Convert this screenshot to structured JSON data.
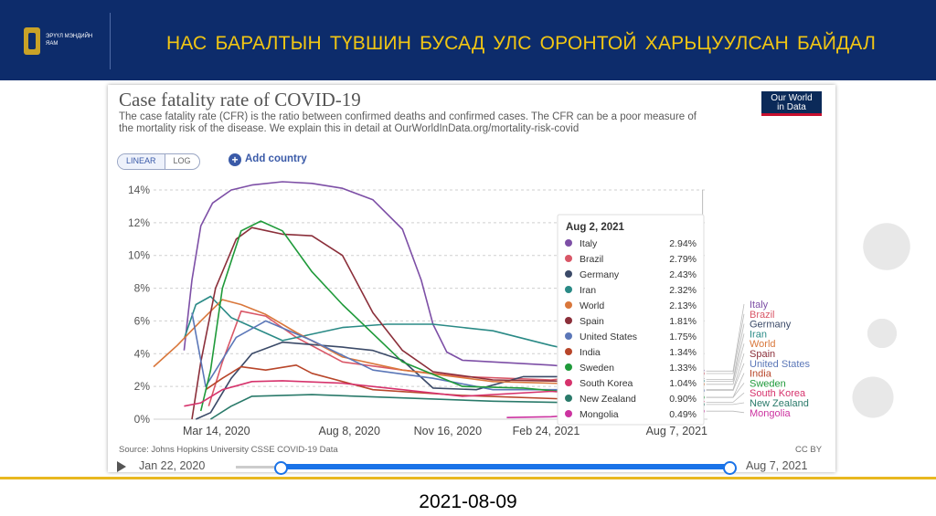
{
  "header": {
    "logo_text": "ЭРҮҮЛ МЭНДИЙН ЯАМ",
    "title": "НАС БАРАЛТЫН ТҮВШИН БУСАД УЛС ОРОНТОЙ ХАРЬЦУУЛСАН БАЙДАЛ"
  },
  "chart": {
    "title": "Case fatality rate of COVID-19",
    "subtitle": "The case fatality rate (CFR) is the ratio between confirmed deaths and confirmed cases. The CFR can be a poor measure of the mortality risk of the disease. We explain this in detail at OurWorldInData.org/mortality-risk-covid",
    "brand_line1": "Our World",
    "brand_line2": "in Data",
    "toggle_linear": "LINEAR",
    "toggle_log": "LOG",
    "add_country": "Add country",
    "source": "Source: Johns Hopkins University CSSE COVID-19 Data",
    "license": "CC BY"
  },
  "timeline": {
    "start_label": "Jan 22, 2020",
    "end_label": "Aug 7, 2021",
    "start_fraction": 0.09,
    "end_fraction": 1.0,
    "accent": "#1a73e8"
  },
  "footer": {
    "date": "2021-08-09"
  },
  "chart_data": {
    "type": "line",
    "title": "Case fatality rate of COVID-19",
    "xlabel": "",
    "ylabel": "",
    "x_ticks": [
      "Mar 14, 2020",
      "Aug 8, 2020",
      "Nov 16, 2020",
      "Feb 24, 2021",
      "Aug 7, 2021"
    ],
    "y_ticks": [
      "0%",
      "2%",
      "4%",
      "6%",
      "8%",
      "10%",
      "12%",
      "14%"
    ],
    "ylim": [
      0,
      14
    ],
    "x_range": [
      "2020-01-22",
      "2021-08-07"
    ],
    "grid": "horizontal",
    "tooltip": {
      "date": "Aug 2, 2021",
      "legend_placement": "right"
    },
    "series": [
      {
        "name": "Italy",
        "color": "#7d4fa6",
        "tooltip_value": "2.94%",
        "points": [
          [
            "2020-02-22",
            4.2
          ],
          [
            "2020-03-01",
            8.5
          ],
          [
            "2020-03-10",
            11.8
          ],
          [
            "2020-03-22",
            13.2
          ],
          [
            "2020-04-10",
            14.0
          ],
          [
            "2020-05-01",
            14.3
          ],
          [
            "2020-06-01",
            14.5
          ],
          [
            "2020-07-01",
            14.4
          ],
          [
            "2020-08-01",
            14.1
          ],
          [
            "2020-09-01",
            13.4
          ],
          [
            "2020-10-01",
            11.6
          ],
          [
            "2020-10-20",
            8.5
          ],
          [
            "2020-11-01",
            5.8
          ],
          [
            "2020-11-15",
            4.1
          ],
          [
            "2020-12-01",
            3.6
          ],
          [
            "2021-01-01",
            3.5
          ],
          [
            "2021-03-01",
            3.3
          ],
          [
            "2021-05-01",
            3.0
          ],
          [
            "2021-08-02",
            2.94
          ]
        ]
      },
      {
        "name": "Brazil",
        "color": "#d95767",
        "tooltip_value": "2.79%",
        "points": [
          [
            "2020-03-18",
            0.8
          ],
          [
            "2020-04-01",
            3.5
          ],
          [
            "2020-04-20",
            6.6
          ],
          [
            "2020-05-15",
            6.3
          ],
          [
            "2020-06-15",
            5.0
          ],
          [
            "2020-08-01",
            3.5
          ],
          [
            "2020-10-01",
            3.0
          ],
          [
            "2020-12-01",
            2.6
          ],
          [
            "2021-03-01",
            2.4
          ],
          [
            "2021-05-01",
            2.78
          ],
          [
            "2021-08-02",
            2.79
          ]
        ]
      },
      {
        "name": "Germany",
        "color": "#3b4a68",
        "tooltip_value": "2.43%",
        "points": [
          [
            "2020-03-05",
            0.0
          ],
          [
            "2020-03-20",
            0.4
          ],
          [
            "2020-04-10",
            2.5
          ],
          [
            "2020-05-01",
            4.0
          ],
          [
            "2020-06-01",
            4.7
          ],
          [
            "2020-08-01",
            4.4
          ],
          [
            "2020-09-01",
            4.2
          ],
          [
            "2020-10-01",
            3.6
          ],
          [
            "2020-11-01",
            1.9
          ],
          [
            "2020-12-15",
            1.8
          ],
          [
            "2021-02-01",
            2.6
          ],
          [
            "2021-04-01",
            2.6
          ],
          [
            "2021-06-01",
            2.45
          ],
          [
            "2021-08-02",
            2.43
          ]
        ]
      },
      {
        "name": "Iran",
        "color": "#2a8a86",
        "tooltip_value": "2.32%",
        "points": [
          [
            "2020-02-22",
            4.9
          ],
          [
            "2020-03-05",
            7.0
          ],
          [
            "2020-03-20",
            7.5
          ],
          [
            "2020-04-10",
            6.2
          ],
          [
            "2020-06-01",
            4.8
          ],
          [
            "2020-08-01",
            5.6
          ],
          [
            "2020-09-15",
            5.8
          ],
          [
            "2020-11-01",
            5.8
          ],
          [
            "2021-01-01",
            5.4
          ],
          [
            "2021-03-01",
            4.5
          ],
          [
            "2021-06-01",
            3.3
          ],
          [
            "2021-08-02",
            2.32
          ]
        ]
      },
      {
        "name": "World",
        "color": "#d9773b",
        "tooltip_value": "2.13%",
        "points": [
          [
            "2020-01-22",
            3.2
          ],
          [
            "2020-02-15",
            4.5
          ],
          [
            "2020-03-10",
            6.0
          ],
          [
            "2020-04-01",
            7.3
          ],
          [
            "2020-04-20",
            7.0
          ],
          [
            "2020-05-15",
            6.4
          ],
          [
            "2020-06-15",
            5.3
          ],
          [
            "2020-08-01",
            3.8
          ],
          [
            "2020-10-01",
            3.0
          ],
          [
            "2021-01-01",
            2.3
          ],
          [
            "2021-05-01",
            2.1
          ],
          [
            "2021-08-02",
            2.13
          ]
        ]
      },
      {
        "name": "Spain",
        "color": "#8b2f3a",
        "tooltip_value": "1.81%",
        "points": [
          [
            "2020-03-01",
            0.0
          ],
          [
            "2020-03-10",
            3.5
          ],
          [
            "2020-03-25",
            8.0
          ],
          [
            "2020-04-15",
            11.0
          ],
          [
            "2020-05-01",
            11.7
          ],
          [
            "2020-06-01",
            11.3
          ],
          [
            "2020-07-01",
            11.2
          ],
          [
            "2020-08-01",
            10.0
          ],
          [
            "2020-09-01",
            6.5
          ],
          [
            "2020-10-01",
            4.2
          ],
          [
            "2020-11-01",
            2.9
          ],
          [
            "2021-01-01",
            2.4
          ],
          [
            "2021-04-01",
            2.3
          ],
          [
            "2021-06-01",
            2.2
          ],
          [
            "2021-08-02",
            1.81
          ]
        ]
      },
      {
        "name": "United States",
        "color": "#5b77b8",
        "tooltip_value": "1.75%",
        "points": [
          [
            "2020-03-01",
            6.5
          ],
          [
            "2020-03-15",
            2.0
          ],
          [
            "2020-04-15",
            5.0
          ],
          [
            "2020-05-15",
            6.0
          ],
          [
            "2020-07-01",
            4.8
          ],
          [
            "2020-09-01",
            3.0
          ],
          [
            "2020-11-01",
            2.5
          ],
          [
            "2021-01-01",
            1.8
          ],
          [
            "2021-04-01",
            1.8
          ],
          [
            "2021-08-02",
            1.75
          ]
        ]
      },
      {
        "name": "India",
        "color": "#b8462a",
        "tooltip_value": "1.34%",
        "points": [
          [
            "2020-03-15",
            1.8
          ],
          [
            "2020-04-01",
            2.5
          ],
          [
            "2020-04-20",
            3.2
          ],
          [
            "2020-05-15",
            3.0
          ],
          [
            "2020-06-15",
            3.3
          ],
          [
            "2020-07-01",
            2.8
          ],
          [
            "2020-09-01",
            1.8
          ],
          [
            "2020-12-01",
            1.45
          ],
          [
            "2021-04-01",
            1.2
          ],
          [
            "2021-06-01",
            1.3
          ],
          [
            "2021-08-02",
            1.34
          ]
        ]
      },
      {
        "name": "Sweden",
        "color": "#1f9a3a",
        "tooltip_value": "1.33%",
        "points": [
          [
            "2020-03-10",
            0.5
          ],
          [
            "2020-03-20",
            3.0
          ],
          [
            "2020-04-01",
            8.0
          ],
          [
            "2020-04-20",
            11.5
          ],
          [
            "2020-05-10",
            12.1
          ],
          [
            "2020-06-01",
            11.5
          ],
          [
            "2020-07-01",
            9.0
          ],
          [
            "2020-08-01",
            7.0
          ],
          [
            "2020-10-01",
            3.5
          ],
          [
            "2020-12-01",
            2.0
          ],
          [
            "2021-02-01",
            1.9
          ],
          [
            "2021-05-01",
            1.4
          ],
          [
            "2021-08-02",
            1.33
          ]
        ]
      },
      {
        "name": "South Korea",
        "color": "#d6336c",
        "tooltip_value": "1.04%",
        "points": [
          [
            "2020-02-22",
            0.8
          ],
          [
            "2020-03-10",
            1.0
          ],
          [
            "2020-04-01",
            1.8
          ],
          [
            "2020-05-01",
            2.3
          ],
          [
            "2020-06-01",
            2.35
          ],
          [
            "2020-08-01",
            2.2
          ],
          [
            "2020-10-01",
            1.8
          ],
          [
            "2020-12-01",
            1.4
          ],
          [
            "2021-03-01",
            1.7
          ],
          [
            "2021-06-01",
            1.3
          ],
          [
            "2021-08-02",
            1.04
          ]
        ]
      },
      {
        "name": "New Zealand",
        "color": "#2a7a6a",
        "tooltip_value": "0.90%",
        "points": [
          [
            "2020-03-20",
            0.0
          ],
          [
            "2020-04-10",
            0.8
          ],
          [
            "2020-05-01",
            1.4
          ],
          [
            "2020-07-01",
            1.5
          ],
          [
            "2020-10-01",
            1.3
          ],
          [
            "2021-01-01",
            1.1
          ],
          [
            "2021-04-01",
            1.0
          ],
          [
            "2021-08-02",
            0.9
          ]
        ]
      },
      {
        "name": "Mongolia",
        "color": "#cc33a0",
        "tooltip_value": "0.49%",
        "points": [
          [
            "2021-01-15",
            0.1
          ],
          [
            "2021-03-01",
            0.15
          ],
          [
            "2021-05-01",
            0.4
          ],
          [
            "2021-08-02",
            0.49
          ]
        ]
      }
    ]
  }
}
